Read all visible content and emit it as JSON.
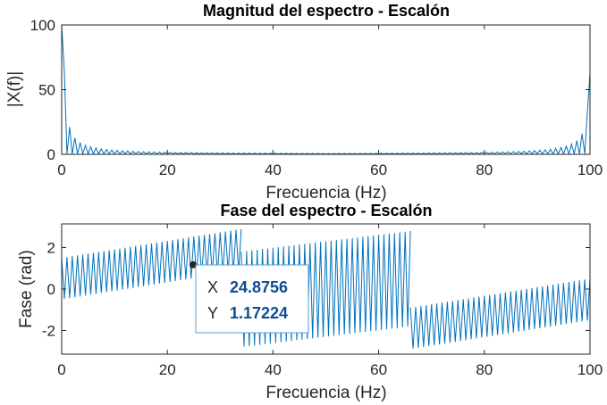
{
  "chart_data": [
    {
      "type": "line",
      "title": "Magnitud del espectro - Escalón",
      "xlabel": "Frecuencia (Hz)",
      "ylabel": "|X(f)|",
      "xlim": [
        0,
        100
      ],
      "ylim": [
        0,
        100
      ],
      "xticks": [
        "0",
        "20",
        "40",
        "60",
        "80",
        "100"
      ],
      "yticks": [
        "0",
        "50",
        "100"
      ],
      "grid": false,
      "color": "#0072BD",
      "series": [
        {
          "x": [
            0,
            1.0,
            2.0,
            3.0,
            4.0,
            5.0,
            10.0,
            20.0,
            30.0,
            50.0,
            70.0,
            80.0,
            90.0,
            95.0,
            97.0,
            98.0,
            99.0,
            99.5
          ],
          "y": [
            100,
            32,
            16,
            10.7,
            8.0,
            6.4,
            3.2,
            1.6,
            1.1,
            0.6,
            1.1,
            1.6,
            3.2,
            6.4,
            10.7,
            16,
            32,
            63
          ]
        }
      ]
    },
    {
      "type": "line",
      "title": "Fase del espectro - Escalón",
      "xlabel": "Frecuencia (Hz)",
      "ylabel": "Fase (rad)",
      "xlim": [
        0,
        100
      ],
      "ylim": [
        -3.14,
        3.14
      ],
      "xticks": [
        "0",
        "20",
        "40",
        "60",
        "80",
        "100"
      ],
      "yticks": [
        "2",
        "0",
        "-2"
      ],
      "grid": false,
      "color": "#0072BD",
      "segments": [
        {
          "x": [
            0,
            34
          ],
          "y_center": [
            0.5,
            1.9
          ],
          "amplitude": 1.0
        },
        {
          "x": [
            34,
            66
          ],
          "y_center": [
            -0.5,
            0.5
          ],
          "amplitude": 2.3
        },
        {
          "x": [
            66,
            100
          ],
          "y_center": [
            -1.9,
            -0.5
          ],
          "amplitude": 1.0
        }
      ],
      "datatip": {
        "x_label": "X",
        "x_value": "24.8756",
        "y_label": "Y",
        "y_value": "1.17224",
        "x": 24.8756,
        "y": 1.17224
      }
    }
  ]
}
